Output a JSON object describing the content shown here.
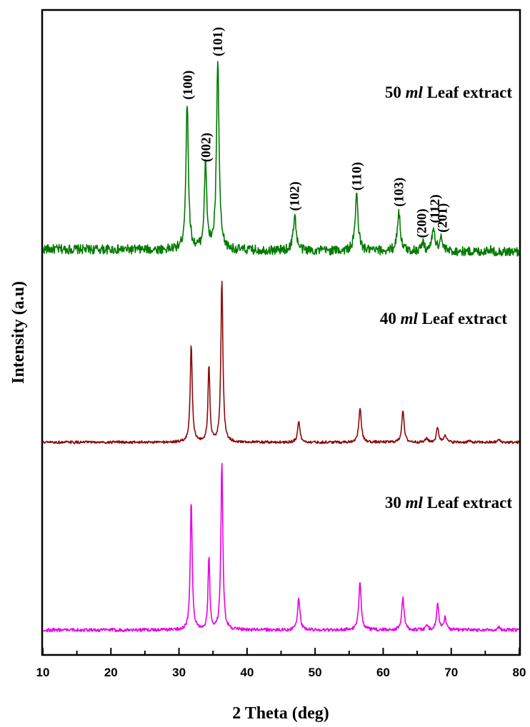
{
  "chart_data": {
    "type": "line",
    "xlabel": "2 Theta (deg)",
    "ylabel": "Intensity (a.u)",
    "xlim": [
      10,
      80
    ],
    "x_ticks": [
      10,
      20,
      30,
      40,
      50,
      60,
      70,
      80
    ],
    "x_tick_labels": [
      "10",
      "20",
      "30",
      "40",
      "50",
      "60",
      "70",
      "80"
    ],
    "y_ticks_shown": false,
    "grid": false,
    "legend": "none (series labelled directly on plot)",
    "stacked_offset": true,
    "series": [
      {
        "name": "50 ml Leaf extract",
        "label_value": "50",
        "label_unit": "ml",
        "label_rest": "Leaf extract",
        "color": "#007a00",
        "baseline": 1.7,
        "noise": 0.035,
        "peaks": [
          {
            "x": 31.2,
            "height": 1.08,
            "width": 0.22
          },
          {
            "x": 33.9,
            "height": 0.62,
            "width": 0.22
          },
          {
            "x": 35.7,
            "height": 1.4,
            "width": 0.22
          },
          {
            "x": 47.0,
            "height": 0.26,
            "width": 0.26
          },
          {
            "x": 56.1,
            "height": 0.41,
            "width": 0.26
          },
          {
            "x": 62.3,
            "height": 0.29,
            "width": 0.26
          },
          {
            "x": 65.8,
            "height": 0.06,
            "width": 0.26
          },
          {
            "x": 67.4,
            "height": 0.17,
            "width": 0.26
          },
          {
            "x": 68.5,
            "height": 0.1,
            "width": 0.24
          },
          {
            "x": 75.5,
            "height": 0.02,
            "width": 0.3
          }
        ]
      },
      {
        "name": "40 ml Leaf extract",
        "label_value": "40",
        "label_unit": "ml",
        "label_rest": "Leaf extract",
        "color": "#8b0a0a",
        "baseline": 0.73,
        "noise": 0.01,
        "peaks": [
          {
            "x": 31.8,
            "height": 0.72,
            "width": 0.18
          },
          {
            "x": 34.4,
            "height": 0.57,
            "width": 0.16
          },
          {
            "x": 36.3,
            "height": 1.19,
            "width": 0.18
          },
          {
            "x": 47.6,
            "height": 0.16,
            "width": 0.2
          },
          {
            "x": 56.6,
            "height": 0.25,
            "width": 0.22
          },
          {
            "x": 62.9,
            "height": 0.24,
            "width": 0.2
          },
          {
            "x": 66.4,
            "height": 0.03,
            "width": 0.2
          },
          {
            "x": 68.0,
            "height": 0.11,
            "width": 0.2
          },
          {
            "x": 69.1,
            "height": 0.06,
            "width": 0.2
          },
          {
            "x": 72.6,
            "height": 0.01,
            "width": 0.2
          },
          {
            "x": 77.0,
            "height": 0.02,
            "width": 0.2
          }
        ]
      },
      {
        "name": "30 ml Leaf extract",
        "label_value": "30",
        "label_unit": "ml",
        "label_rest": "Leaf extract",
        "color": "#e600e6",
        "baseline": 0.0,
        "noise": 0.012,
        "peaks": [
          {
            "x": 31.8,
            "height": 0.95,
            "width": 0.17
          },
          {
            "x": 34.4,
            "height": 0.55,
            "width": 0.15
          },
          {
            "x": 36.3,
            "height": 1.24,
            "width": 0.17
          },
          {
            "x": 47.6,
            "height": 0.24,
            "width": 0.2
          },
          {
            "x": 56.6,
            "height": 0.36,
            "width": 0.21
          },
          {
            "x": 62.9,
            "height": 0.24,
            "width": 0.2
          },
          {
            "x": 66.4,
            "height": 0.03,
            "width": 0.2
          },
          {
            "x": 68.0,
            "height": 0.19,
            "width": 0.2
          },
          {
            "x": 69.1,
            "height": 0.09,
            "width": 0.2
          },
          {
            "x": 72.6,
            "height": 0.01,
            "width": 0.2
          },
          {
            "x": 77.0,
            "height": 0.02,
            "width": 0.2
          }
        ]
      }
    ],
    "peak_labels": [
      {
        "text": "(100)",
        "x": 31.2
      },
      {
        "text": "(002)",
        "x": 33.9
      },
      {
        "text": "(101)",
        "x": 35.7
      },
      {
        "text": "(102)",
        "x": 47.0
      },
      {
        "text": "(110)",
        "x": 56.1
      },
      {
        "text": "(103)",
        "x": 62.3
      },
      {
        "text": "(200)",
        "x": 65.8
      },
      {
        "text": "(112)",
        "x": 67.4
      },
      {
        "text": "(201)",
        "x": 68.5
      }
    ]
  }
}
